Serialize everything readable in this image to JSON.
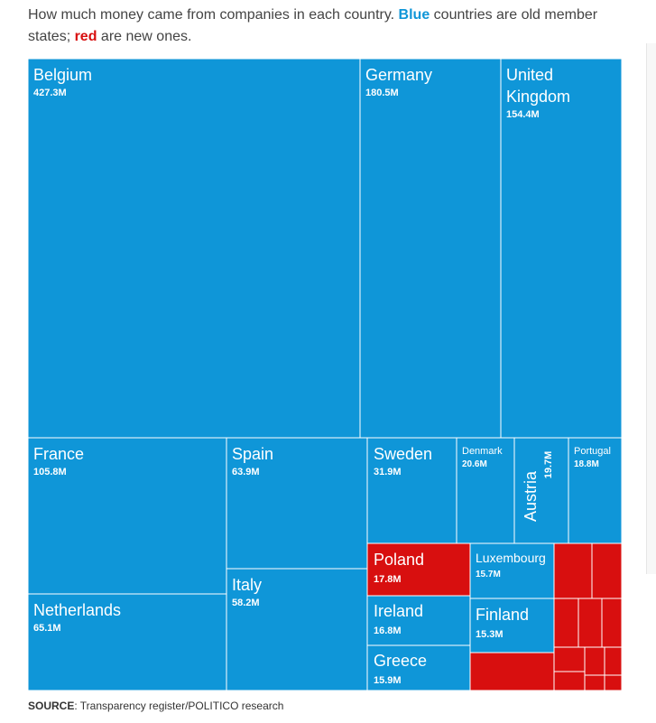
{
  "caption": {
    "prefix": "How much money came from companies in each country. ",
    "blue_word": "Blue",
    "middle": " countries are old member states; ",
    "red_word": "red",
    "suffix": " are new ones."
  },
  "colors": {
    "old_member": "#0f96d8",
    "new_member": "#d80f0f",
    "border": "#ffffff"
  },
  "source": {
    "label": "SOURCE",
    "text": ": Transparency register/POLITICO research"
  },
  "chart_data": {
    "type": "treemap",
    "title": "",
    "unit": "M",
    "series": [
      {
        "name": "Old member states",
        "items": [
          {
            "label": "Belgium",
            "value": 427.3,
            "display": "427.3M"
          },
          {
            "label": "Germany",
            "value": 180.5,
            "display": "180.5M"
          },
          {
            "label": "United Kingdom",
            "value": 154.4,
            "display": "154.4M"
          },
          {
            "label": "France",
            "value": 105.8,
            "display": "105.8M"
          },
          {
            "label": "Netherlands",
            "value": 65.1,
            "display": "65.1M"
          },
          {
            "label": "Spain",
            "value": 63.9,
            "display": "63.9M"
          },
          {
            "label": "Italy",
            "value": 58.2,
            "display": "58.2M"
          },
          {
            "label": "Sweden",
            "value": 31.9,
            "display": "31.9M"
          },
          {
            "label": "Denmark",
            "value": 20.6,
            "display": "20.6M"
          },
          {
            "label": "Austria",
            "value": 19.7,
            "display": "19.7M"
          },
          {
            "label": "Portugal",
            "value": 18.8,
            "display": "18.8M"
          },
          {
            "label": "Ireland",
            "value": 16.8,
            "display": "16.8M"
          },
          {
            "label": "Greece",
            "value": 15.9,
            "display": "15.9M"
          },
          {
            "label": "Luxembourg",
            "value": 15.7,
            "display": "15.7M"
          },
          {
            "label": "Finland",
            "value": 15.3,
            "display": "15.3M"
          }
        ]
      },
      {
        "name": "New member states",
        "items": [
          {
            "label": "Poland",
            "value": 17.8,
            "display": "17.8M"
          },
          {
            "label": "",
            "value": null
          },
          {
            "label": "",
            "value": null
          },
          {
            "label": "",
            "value": null
          },
          {
            "label": "",
            "value": null
          },
          {
            "label": "",
            "value": null
          },
          {
            "label": "",
            "value": null
          },
          {
            "label": "",
            "value": null
          },
          {
            "label": "",
            "value": null
          },
          {
            "label": "",
            "value": null
          },
          {
            "label": "",
            "value": null
          },
          {
            "label": "",
            "value": null
          },
          {
            "label": "",
            "value": null
          }
        ]
      }
    ]
  }
}
